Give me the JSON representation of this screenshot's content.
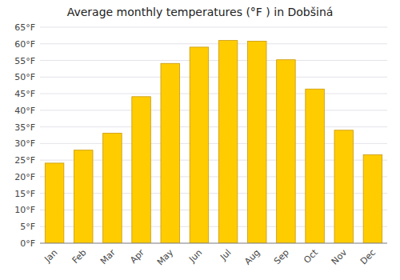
{
  "chart_data": {
    "type": "bar",
    "title": "Average monthly temperatures (°F ) in Dobšiná",
    "categories": [
      "Jan",
      "Feb",
      "Mar",
      "Apr",
      "May",
      "Jun",
      "Jul",
      "Aug",
      "Sep",
      "Oct",
      "Nov",
      "Dec"
    ],
    "values": [
      24.1,
      28.0,
      33.1,
      44.1,
      54.1,
      59.0,
      61.0,
      60.8,
      55.2,
      46.4,
      34.0,
      26.6
    ],
    "color": "#FFCC00",
    "ylim": [
      0,
      65
    ],
    "yticks": [
      {
        "value": 0,
        "label": "0°F"
      },
      {
        "value": 5,
        "label": "5°F"
      },
      {
        "value": 10,
        "label": "10°F"
      },
      {
        "value": 15,
        "label": "15°F"
      },
      {
        "value": 20,
        "label": "20°F"
      },
      {
        "value": 25,
        "label": "25°F"
      },
      {
        "value": 30,
        "label": "30°F"
      },
      {
        "value": 35,
        "label": "35°F"
      },
      {
        "value": 40,
        "label": "40°F"
      },
      {
        "value": 45,
        "label": "45°F"
      },
      {
        "value": 50,
        "label": "50°F"
      },
      {
        "value": 55,
        "label": "55°F"
      },
      {
        "value": 60,
        "label": "60°F"
      },
      {
        "value": 65,
        "label": "65°F"
      }
    ],
    "grid": true
  }
}
